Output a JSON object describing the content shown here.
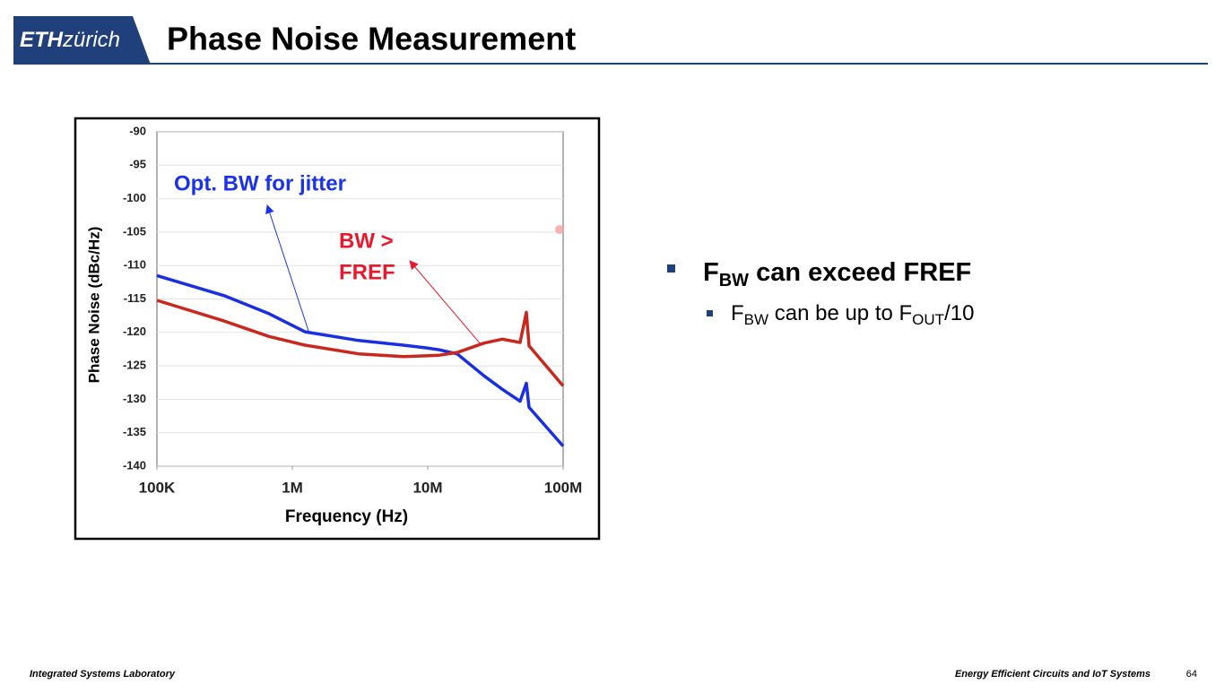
{
  "header": {
    "logo_bold": "ETH",
    "logo_rest": "zürich",
    "title": "Phase Noise Measurement"
  },
  "chart_data": {
    "type": "line",
    "x_label": "Frequency (Hz)",
    "y_label": "Phase Noise (dBc/Hz)",
    "annotations": [
      "Opt. BW for jitter",
      "BW >",
      "FREF"
    ],
    "annotation_colors": [
      "#1a33e6",
      "#e8192c",
      "#e8192c"
    ],
    "x": [
      100000,
      314000,
      673000,
      1240000,
      3090000,
      6620000,
      9700000,
      12200000,
      16500000,
      26100000,
      35500000,
      48100000,
      53500000,
      56000000,
      100000000
    ],
    "series": [
      {
        "color": "#1a2fe0",
        "values": [
          -111.5,
          -114.5,
          -117.2,
          -119.9,
          -121.2,
          -121.9,
          -122.3,
          -122.6,
          -123.2,
          -126.5,
          -128.5,
          -130.3,
          -127.6,
          -131.2,
          -137
        ]
      },
      {
        "color": "#c8281e",
        "values": [
          -115.2,
          -118.3,
          -120.6,
          -121.9,
          -123.2,
          -123.6,
          -123.5,
          -123.4,
          -123,
          -121.6,
          -121,
          -121.5,
          -117,
          -122,
          -128
        ]
      }
    ],
    "x_log": true,
    "xlim": [
      100000,
      100000000
    ],
    "xticks": [
      {
        "value": 100000,
        "label": "100K"
      },
      {
        "value": 1000000,
        "label": "1M"
      },
      {
        "value": 10000000,
        "label": "10M"
      },
      {
        "value": 100000000,
        "label": "100M"
      }
    ],
    "ylim": [
      -140,
      -90
    ],
    "yticks": [
      -140,
      -135,
      -130,
      -125,
      -120,
      -115,
      -110,
      -105,
      -100,
      -95,
      -90
    ],
    "grid": true
  },
  "bullets": [
    {
      "parts": [
        "F",
        "BW",
        " can exceed FREF"
      ]
    },
    {
      "parts": [
        "F",
        "BW",
        " can be up to F",
        "OUT",
        "/10"
      ]
    }
  ],
  "footer": {
    "left": "Integrated Systems Laboratory",
    "right": "Energy Efficient Circuits and IoT Systems",
    "page": "64"
  }
}
